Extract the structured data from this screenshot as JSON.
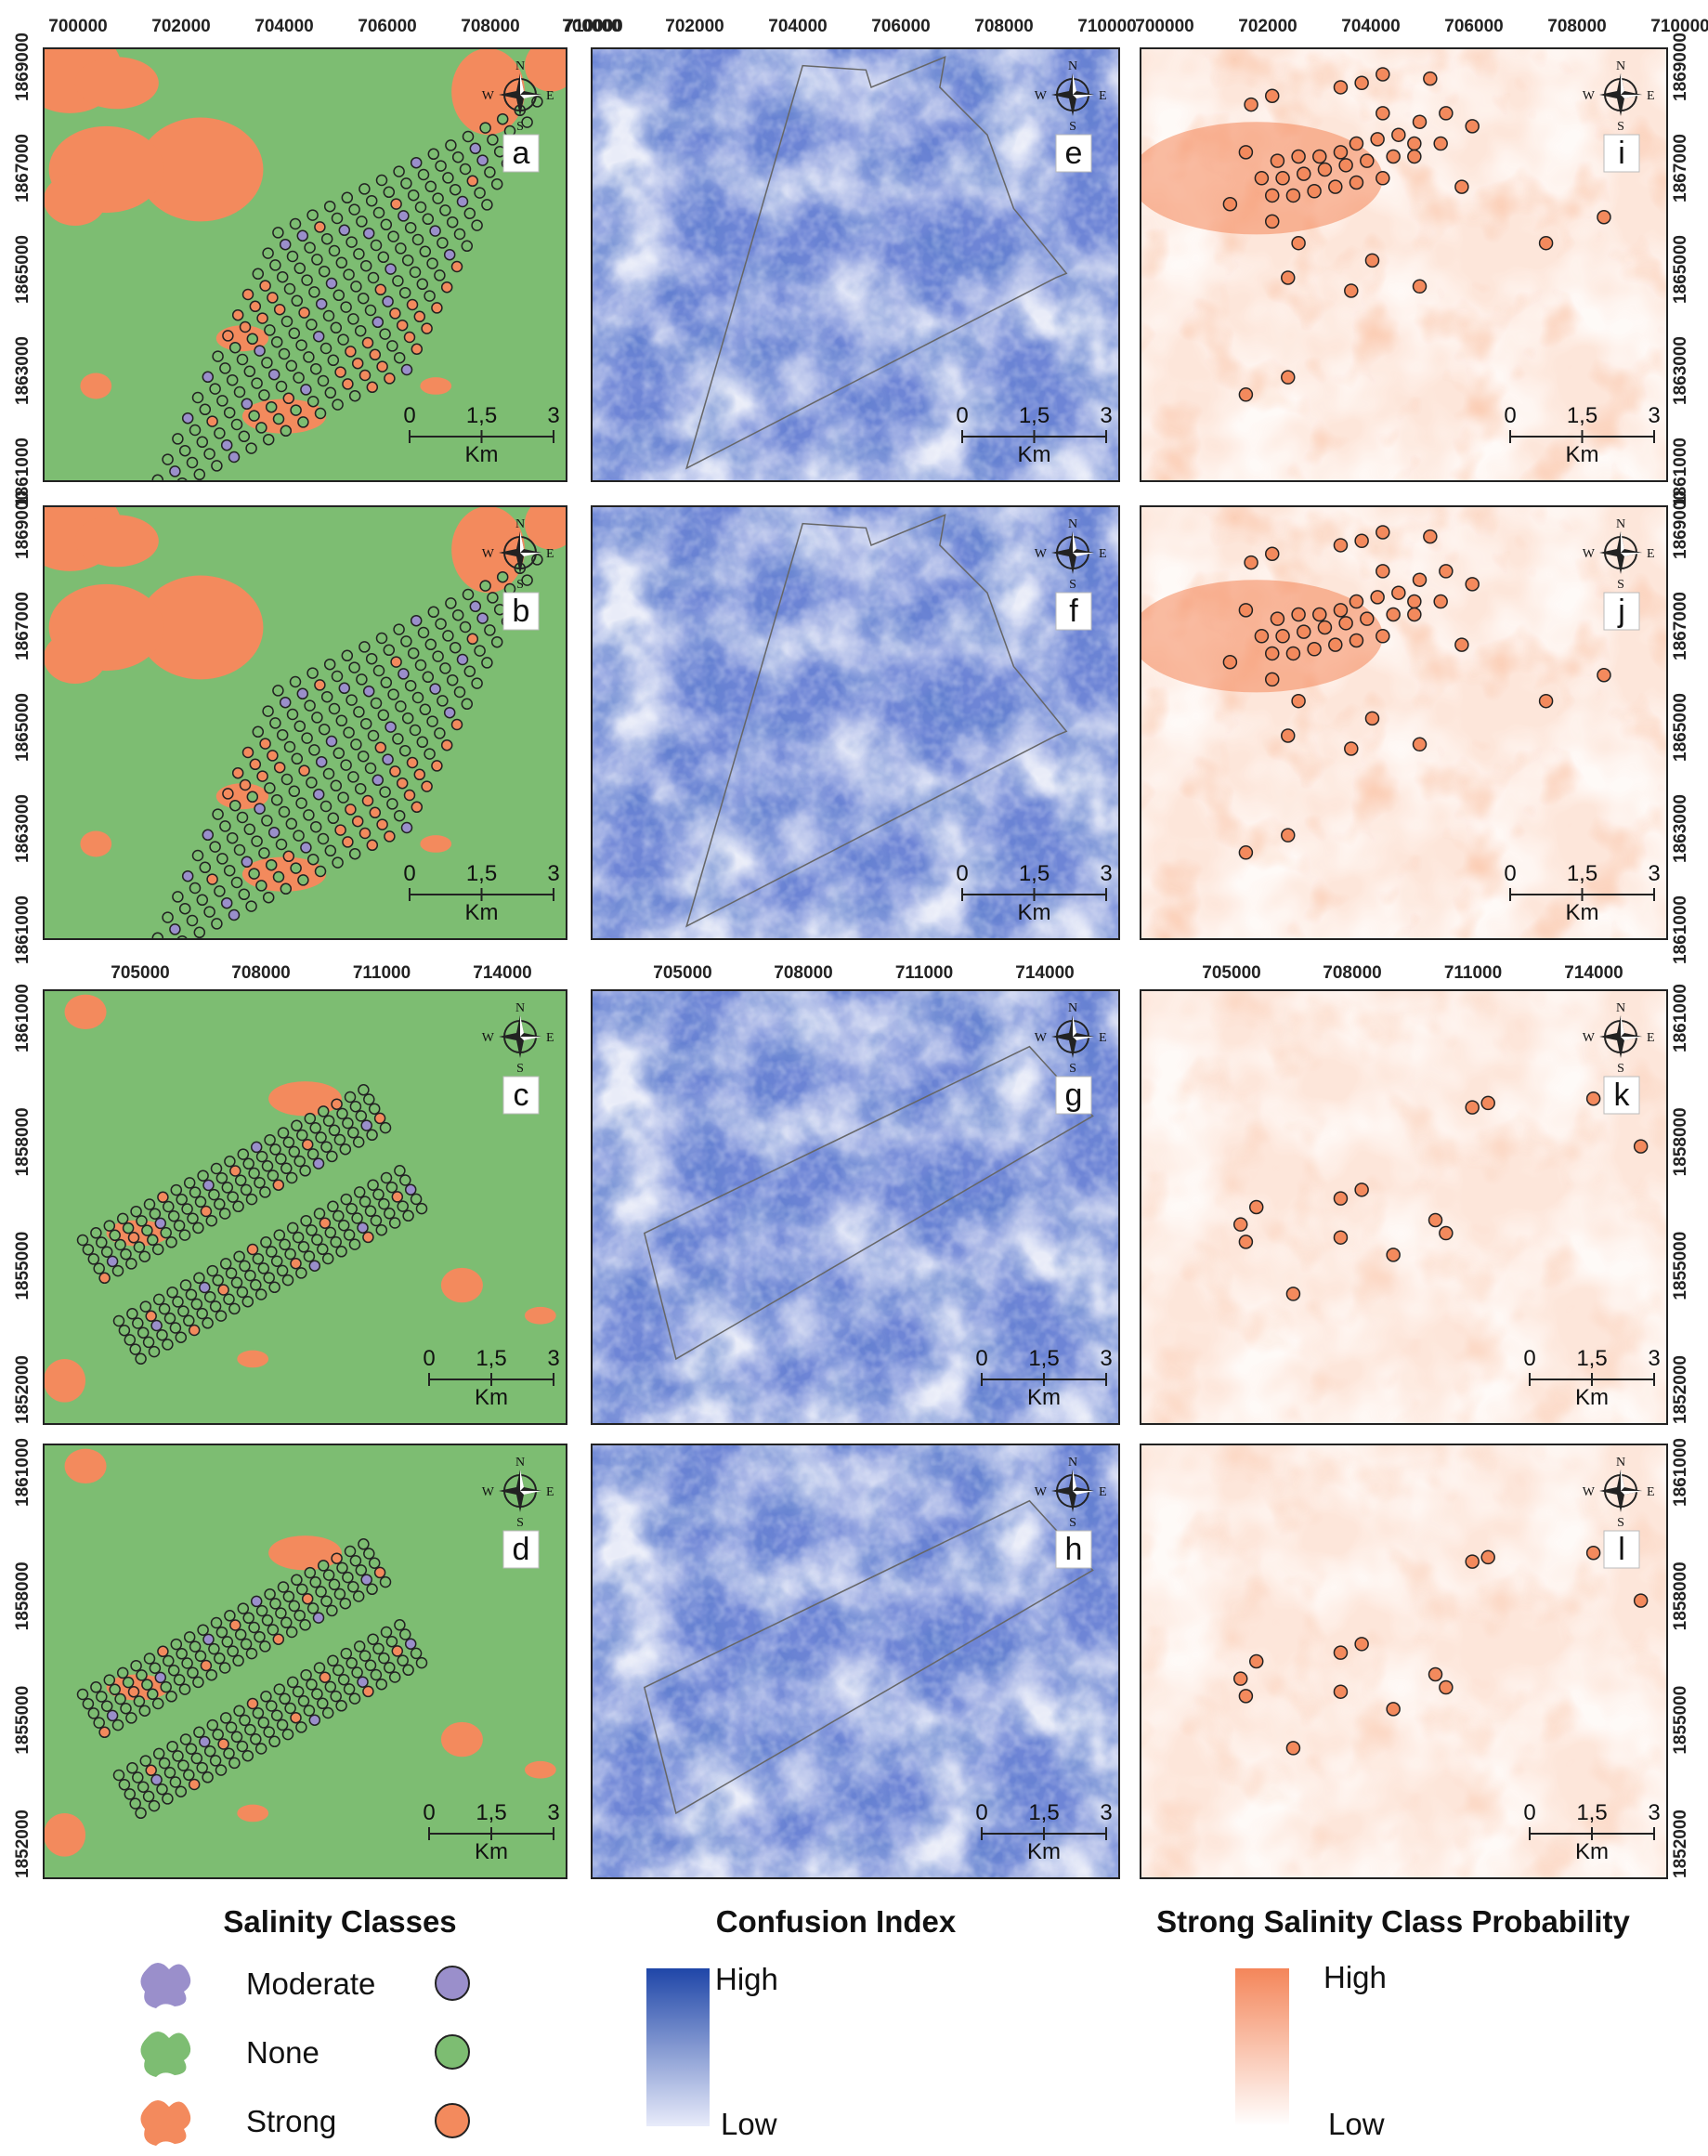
{
  "panels": [
    {
      "id": "a",
      "letter": "a",
      "type": "class",
      "site": "s1"
    },
    {
      "id": "e",
      "letter": "e",
      "type": "confusion",
      "site": "s1"
    },
    {
      "id": "i",
      "letter": "i",
      "type": "prob",
      "site": "s1"
    },
    {
      "id": "b",
      "letter": "b",
      "type": "class",
      "site": "s1"
    },
    {
      "id": "f",
      "letter": "f",
      "type": "confusion",
      "site": "s1"
    },
    {
      "id": "j",
      "letter": "j",
      "type": "prob",
      "site": "s1"
    },
    {
      "id": "c",
      "letter": "c",
      "type": "class",
      "site": "s2"
    },
    {
      "id": "g",
      "letter": "g",
      "type": "confusion",
      "site": "s2"
    },
    {
      "id": "k",
      "letter": "k",
      "type": "prob",
      "site": "s2"
    },
    {
      "id": "d",
      "letter": "d",
      "type": "class",
      "site": "s2"
    },
    {
      "id": "h",
      "letter": "h",
      "type": "confusion",
      "site": "s2"
    },
    {
      "id": "l",
      "letter": "l",
      "type": "prob",
      "site": "s2"
    }
  ],
  "axes": {
    "site1_easting": [
      "700000",
      "702000",
      "704000",
      "706000",
      "708000",
      "710000"
    ],
    "site1_northing": [
      "1869000",
      "1867000",
      "1865000",
      "1863000",
      "1861000"
    ],
    "site2_easting": [
      "705000",
      "708000",
      "711000",
      "714000"
    ],
    "site2_northing": [
      "1861000",
      "1858000",
      "1855000",
      "1852000"
    ]
  },
  "compass": {
    "n": "N",
    "s": "S",
    "e": "E",
    "w": "W"
  },
  "scale_bar": {
    "ticks": [
      "0",
      "1,5",
      "3"
    ],
    "unit": "Km"
  },
  "colors": {
    "none": "#7dbd72",
    "strong": "#f38a5d",
    "moderate": "#9a8fcb",
    "confusion_high": "#1f46a8",
    "confusion_low": "#e8ebfa",
    "prob_high": "#f4865a",
    "prob_low": "#ffffff"
  },
  "legend": {
    "salinity": {
      "title": "Salinity Classes",
      "items": [
        {
          "label": "Moderate",
          "color": "#9a8fcb"
        },
        {
          "label": "None",
          "color": "#7dbd72"
        },
        {
          "label": "Strong",
          "color": "#f38a5d"
        }
      ]
    },
    "confusion": {
      "title": "Confusion Index",
      "high": "High",
      "low": "Low"
    },
    "probability": {
      "title": "Strong Salinity Class Probability",
      "high": "High",
      "low": "Low"
    }
  }
}
